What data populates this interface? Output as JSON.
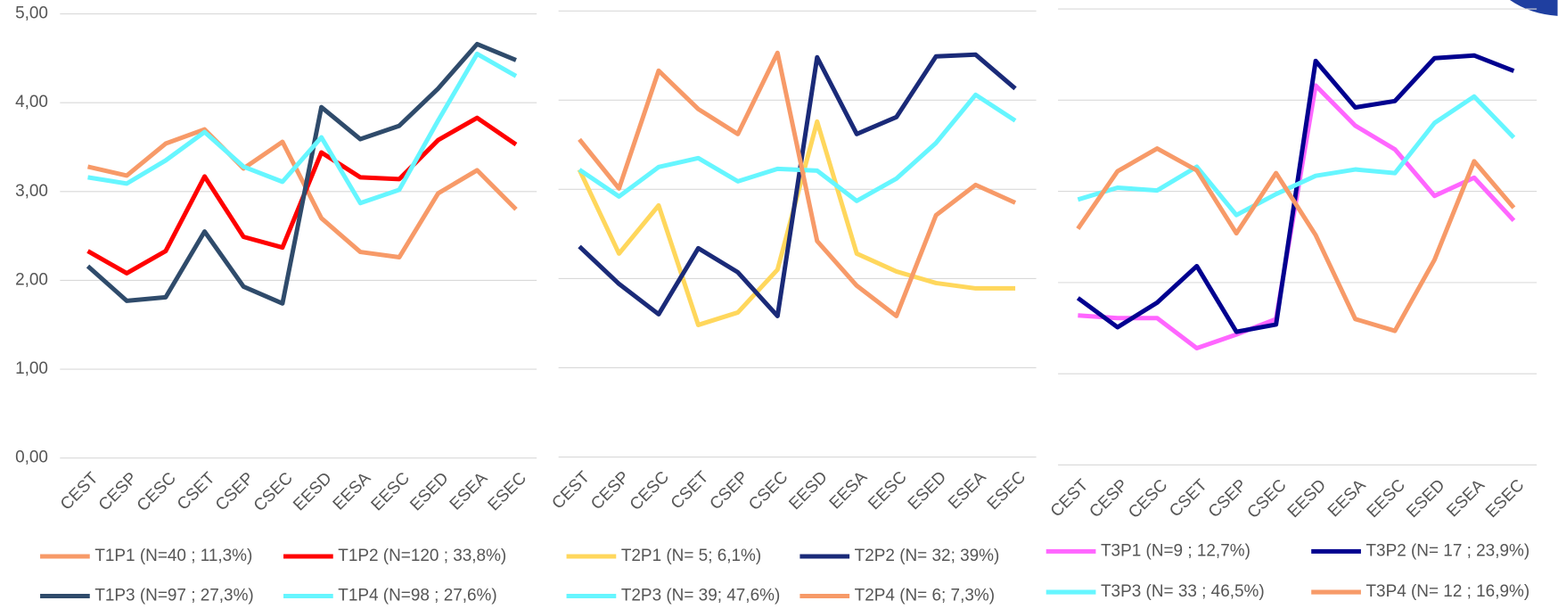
{
  "chart_data": [
    {
      "type": "line",
      "categories": [
        "CEST",
        "CESP",
        "CESC",
        "CSET",
        "CSEP",
        "CSEC",
        "EESD",
        "EESA",
        "EESC",
        "ESED",
        "ESEA",
        "ESEC"
      ],
      "ylim": [
        0,
        5
      ],
      "yticks": [
        {
          "value": 0,
          "label": "0,00"
        },
        {
          "value": 1,
          "label": "1,00"
        },
        {
          "value": 2,
          "label": "2,00"
        },
        {
          "value": 3,
          "label": "3,00"
        },
        {
          "value": 4,
          "label": "4,00"
        },
        {
          "value": 5,
          "label": "5,00"
        }
      ],
      "series": [
        {
          "name": "T1P1 (N=40 ; 11,3%)",
          "color": "#f79a68",
          "values": [
            3.28,
            3.18,
            3.54,
            3.7,
            3.26,
            3.56,
            2.7,
            2.32,
            2.26,
            2.98,
            3.24,
            2.8
          ]
        },
        {
          "name": "T1P2 (N=120 ; 33,8%)",
          "color": "#ff0000",
          "values": [
            2.33,
            2.08,
            2.33,
            3.17,
            2.49,
            2.37,
            3.44,
            3.16,
            3.14,
            3.58,
            3.83,
            3.53
          ]
        },
        {
          "name": "T1P3 (N=97 ; 27,3%)",
          "color": "#2f4b6b",
          "values": [
            2.16,
            1.77,
            1.81,
            2.55,
            1.93,
            1.74,
            3.95,
            3.59,
            3.74,
            4.16,
            4.66,
            4.48
          ]
        },
        {
          "name": "T1P4 (N=98 ; 27,6%)",
          "color": "#66f6ff",
          "values": [
            3.16,
            3.09,
            3.35,
            3.67,
            3.28,
            3.11,
            3.61,
            2.87,
            3.02,
            3.8,
            4.55,
            4.3
          ]
        }
      ]
    },
    {
      "type": "line",
      "categories": [
        "CEST",
        "CESP",
        "CESC",
        "CSET",
        "CSEP",
        "CSEC",
        "EESD",
        "EESA",
        "EESC",
        "ESED",
        "ESEA",
        "ESEC"
      ],
      "ylim": [
        0,
        5
      ],
      "yticks": [
        0,
        1,
        2,
        3,
        4,
        5
      ],
      "series": [
        {
          "name": "T2P1 (N= 5; 6,1%)",
          "color": "#ffd75c",
          "values": [
            3.22,
            2.28,
            2.82,
            1.48,
            1.62,
            2.1,
            3.76,
            2.28,
            2.08,
            1.95,
            1.89,
            1.89
          ]
        },
        {
          "name": "T2P2 (N= 32; 39%)",
          "color": "#1a2a78",
          "values": [
            2.36,
            1.94,
            1.6,
            2.34,
            2.07,
            1.58,
            4.48,
            3.62,
            3.81,
            4.49,
            4.51,
            4.13
          ]
        },
        {
          "name": "T2P3 (N= 39; 47,6%)",
          "color": "#66f6ff",
          "values": [
            3.22,
            2.92,
            3.25,
            3.35,
            3.09,
            3.23,
            3.21,
            2.87,
            3.12,
            3.52,
            4.06,
            3.77
          ]
        },
        {
          "name": "T2P4 (N= 6; 7,3%)",
          "color": "#f79a68",
          "values": [
            3.56,
            3.01,
            4.33,
            3.9,
            3.62,
            4.53,
            2.42,
            1.92,
            1.58,
            2.71,
            3.05,
            2.85
          ]
        }
      ]
    },
    {
      "type": "line",
      "categories": [
        "CEST",
        "CESP",
        "CESC",
        "CSET",
        "CSEP",
        "CSEC",
        "EESD",
        "EESA",
        "EESC",
        "ESED",
        "ESEA",
        "ESEC"
      ],
      "ylim": [
        0,
        5
      ],
      "yticks": [
        0,
        1,
        2,
        3,
        4,
        5
      ],
      "series": [
        {
          "name": "T3P1 (N=9 ; 12,7%)",
          "color": "#ff66ff",
          "values": [
            1.64,
            1.61,
            1.61,
            1.28,
            1.43,
            1.6,
            4.16,
            3.72,
            3.46,
            2.95,
            3.15,
            2.68
          ]
        },
        {
          "name": "T3P2 (N= 17 ; 23,9%)",
          "color": "#00008f",
          "values": [
            1.83,
            1.51,
            1.78,
            2.18,
            1.46,
            1.54,
            4.43,
            3.92,
            3.99,
            4.46,
            4.49,
            4.32
          ]
        },
        {
          "name": "T3P3 (N= 33 ; 46,5%)",
          "color": "#66f6ff",
          "values": [
            2.91,
            3.04,
            3.01,
            3.27,
            2.74,
            2.97,
            3.17,
            3.24,
            3.2,
            3.75,
            4.04,
            3.59
          ]
        },
        {
          "name": "T3P4 (N= 12 ; 16,9%)",
          "color": "#f79a68",
          "values": [
            2.59,
            3.22,
            3.47,
            3.23,
            2.54,
            3.2,
            2.52,
            1.6,
            1.47,
            2.25,
            3.33,
            2.82
          ]
        }
      ]
    }
  ]
}
